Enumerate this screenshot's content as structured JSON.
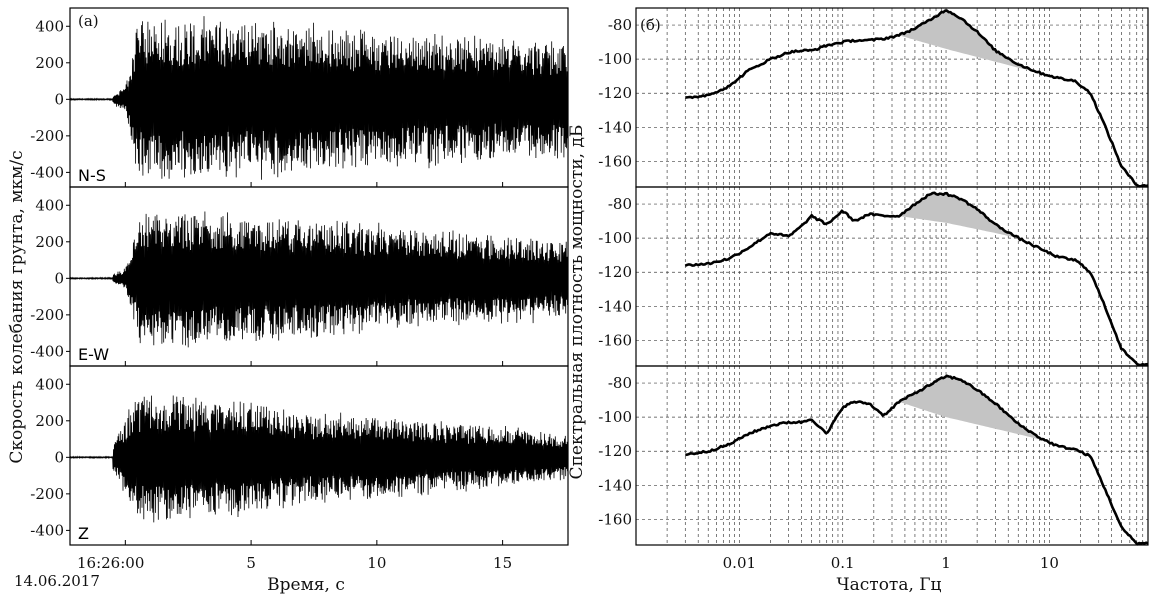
{
  "panel_a": {
    "label": "(а)",
    "ylabel": "Скорость колебания грунта, мкм/с",
    "xlabel": "Время, с",
    "time_start": "16:26:00",
    "date": "14.06.2017",
    "xticks": [
      "5",
      "10",
      "15"
    ],
    "yticks": [
      "400",
      "200",
      "0",
      "-200",
      "-400"
    ],
    "components": [
      "N-S",
      "E-W",
      "Z"
    ]
  },
  "panel_b": {
    "label": "(б)",
    "ylabel": "Спектральная плотность мощности, дБ",
    "xlabel": "Частота, Гц",
    "xticks": [
      "0.01",
      "0.1",
      "1",
      "10"
    ],
    "yticks": [
      "-80",
      "-100",
      "-120",
      "-140",
      "-160"
    ]
  },
  "chart_data": [
    {
      "type": "line",
      "title": "",
      "xlabel": "Время, с",
      "ylabel": "Скорость колебания грунта, мкм/с",
      "xlim": [
        -2.2,
        17.6
      ],
      "ylim": [
        -480,
        500
      ],
      "series": [
        {
          "name": "N-S",
          "x": [
            -0.5,
            0,
            0.5,
            1,
            2,
            3,
            4,
            5,
            6,
            7,
            8,
            9,
            10,
            11,
            12,
            13,
            14,
            15,
            16,
            17.5
          ],
          "envelope": [
            30,
            70,
            480,
            490,
            480,
            470,
            470,
            470,
            460,
            450,
            430,
            420,
            410,
            400,
            390,
            380,
            370,
            360,
            350,
            340
          ]
        },
        {
          "name": "E-W",
          "x": [
            -0.5,
            0,
            0.5,
            1,
            2,
            3,
            4,
            5,
            6,
            7,
            8,
            9,
            10,
            11,
            12,
            13,
            14,
            15,
            16,
            17.5
          ],
          "envelope": [
            25,
            60,
            380,
            400,
            400,
            400,
            390,
            380,
            370,
            360,
            350,
            330,
            310,
            300,
            290,
            280,
            270,
            260,
            250,
            240
          ]
        },
        {
          "name": "Z",
          "x": [
            -0.5,
            0,
            0.5,
            1,
            2,
            3,
            4,
            5,
            6,
            7,
            8,
            9,
            10,
            11,
            12,
            13,
            14,
            15,
            16,
            17.5
          ],
          "envelope": [
            80,
            250,
            370,
            380,
            370,
            360,
            350,
            340,
            300,
            280,
            260,
            250,
            250,
            240,
            220,
            200,
            190,
            180,
            160,
            140
          ]
        }
      ]
    },
    {
      "type": "line",
      "title": "",
      "xlabel": "Частота, Гц",
      "ylabel": "Спектральная плотность мощности, дБ",
      "xscale": "log",
      "xlim": [
        0.001,
        90
      ],
      "ylim": [
        -175,
        -70
      ],
      "series": [
        {
          "name": "N-S",
          "x": [
            0.003,
            0.005,
            0.008,
            0.012,
            0.02,
            0.03,
            0.04,
            0.05,
            0.07,
            0.1,
            0.13,
            0.18,
            0.25,
            0.35,
            0.5,
            0.7,
            1.0,
            1.4,
            2,
            3,
            5,
            8,
            12,
            18,
            25,
            35,
            50,
            70,
            90
          ],
          "y": [
            -123,
            -121,
            -116,
            -107,
            -100,
            -96,
            -95,
            -95,
            -92,
            -90,
            -89,
            -89,
            -88,
            -86,
            -82,
            -77,
            -71,
            -76,
            -84,
            -95,
            -103,
            -108,
            -111,
            -113,
            -120,
            -140,
            -163,
            -174,
            -174
          ],
          "baseline_x": [
            0.35,
            1.0,
            5,
            8
          ],
          "baseline_y": [
            -86,
            -94,
            -105,
            -108
          ]
        },
        {
          "name": "E-W",
          "x": [
            0.003,
            0.005,
            0.008,
            0.012,
            0.02,
            0.03,
            0.04,
            0.05,
            0.07,
            0.1,
            0.13,
            0.18,
            0.25,
            0.35,
            0.5,
            0.7,
            1.0,
            1.4,
            2,
            3,
            5,
            8,
            12,
            18,
            25,
            35,
            50,
            70,
            90
          ],
          "y": [
            -116,
            -115,
            -112,
            -106,
            -97,
            -99,
            -93,
            -87,
            -92,
            -84,
            -90,
            -86,
            -87,
            -87,
            -80,
            -74,
            -74,
            -77,
            -83,
            -92,
            -100,
            -106,
            -111,
            -113,
            -120,
            -141,
            -165,
            -174,
            -174
          ],
          "baseline_x": [
            0.35,
            1.0,
            3,
            5
          ],
          "baseline_y": [
            -87,
            -91,
            -97,
            -100
          ]
        },
        {
          "name": "Z",
          "x": [
            0.003,
            0.005,
            0.008,
            0.012,
            0.02,
            0.03,
            0.04,
            0.05,
            0.07,
            0.1,
            0.13,
            0.18,
            0.25,
            0.35,
            0.5,
            0.7,
            1.0,
            1.4,
            2,
            3,
            5,
            8,
            12,
            18,
            25,
            35,
            50,
            70,
            90
          ],
          "y": [
            -122,
            -120,
            -116,
            -110,
            -105,
            -103,
            -103,
            -101,
            -110,
            -94,
            -91,
            -92,
            -99,
            -91,
            -86,
            -81,
            -76,
            -78,
            -84,
            -92,
            -104,
            -112,
            -117,
            -119,
            -123,
            -143,
            -165,
            -174,
            -174
          ],
          "baseline_x": [
            0.35,
            1.0,
            5,
            8
          ],
          "baseline_y": [
            -91,
            -100,
            -110,
            -113
          ]
        }
      ]
    }
  ]
}
